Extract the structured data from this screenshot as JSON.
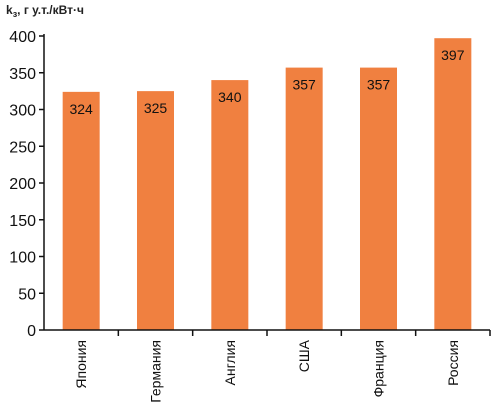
{
  "chart_data": {
    "type": "bar",
    "ylabel": "k",
    "ylabel_subscript": "з",
    "ylabel_unit": ", г у.т./кВт·ч",
    "categories": [
      "Япония",
      "Германия",
      "Англия",
      "США",
      "Франция",
      "Россия"
    ],
    "values": [
      324,
      325,
      340,
      357,
      357,
      397
    ],
    "data_labels": [
      "324",
      "325",
      "340",
      "357",
      "357",
      "397"
    ],
    "ylim": [
      0,
      400
    ],
    "yticks": [
      0,
      50,
      100,
      150,
      200,
      250,
      300,
      350,
      400
    ],
    "ytick_labels": [
      "0",
      "50",
      "100",
      "150",
      "200",
      "250",
      "300",
      "350",
      "400"
    ],
    "bar_color": "#f08040",
    "axis_color": "#111111",
    "grid": false,
    "legend": "none"
  }
}
